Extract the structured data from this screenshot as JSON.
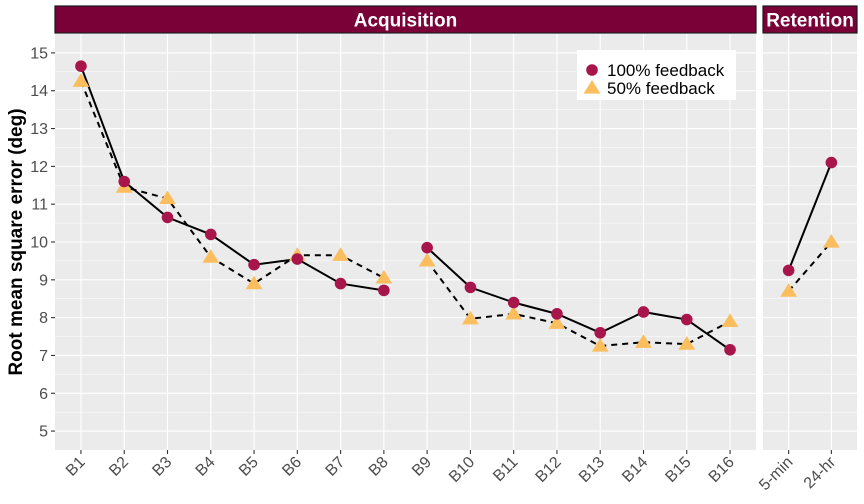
{
  "chart_data": {
    "type": "line",
    "ylabel": "Root mean square error (deg)",
    "ylim": [
      4.5,
      15.5
    ],
    "y_ticks": [
      5,
      6,
      7,
      8,
      9,
      10,
      11,
      12,
      13,
      14,
      15
    ],
    "grid": true,
    "legend_position": "top-right",
    "panels": [
      {
        "title": "Acquisition",
        "categories": [
          "B1",
          "B2",
          "B3",
          "B4",
          "B5",
          "B6",
          "B7",
          "B8",
          "B9",
          "B10",
          "B11",
          "B12",
          "B13",
          "B14",
          "B15",
          "B16"
        ],
        "line_breaks_after": [
          "B8"
        ]
      },
      {
        "title": "Retention",
        "categories": [
          "5-min",
          "24-hr"
        ],
        "line_breaks_after": []
      }
    ],
    "series": [
      {
        "name": "100% feedback",
        "marker": "circle",
        "line": "solid",
        "color": "#A8154B",
        "values": [
          [
            14.65,
            11.6,
            10.65,
            10.2,
            9.4,
            9.55,
            8.9,
            8.72,
            9.85,
            8.8,
            8.4,
            8.1,
            7.6,
            8.15,
            7.95,
            7.15
          ],
          [
            9.25,
            12.1
          ]
        ]
      },
      {
        "name": "50% feedback",
        "marker": "triangle",
        "line": "dashed",
        "color": "#FBBE5E",
        "values": [
          [
            14.25,
            11.45,
            11.15,
            9.6,
            8.9,
            9.65,
            9.65,
            9.05,
            9.5,
            7.97,
            8.1,
            7.85,
            7.25,
            7.35,
            7.3,
            7.9
          ],
          [
            8.7,
            10.0
          ]
        ]
      }
    ]
  },
  "style": {
    "strip_fill": "#7A0038",
    "panel_background": "#EBEBEB",
    "grid_color": "#FFFFFF",
    "line_color": "#000000"
  }
}
